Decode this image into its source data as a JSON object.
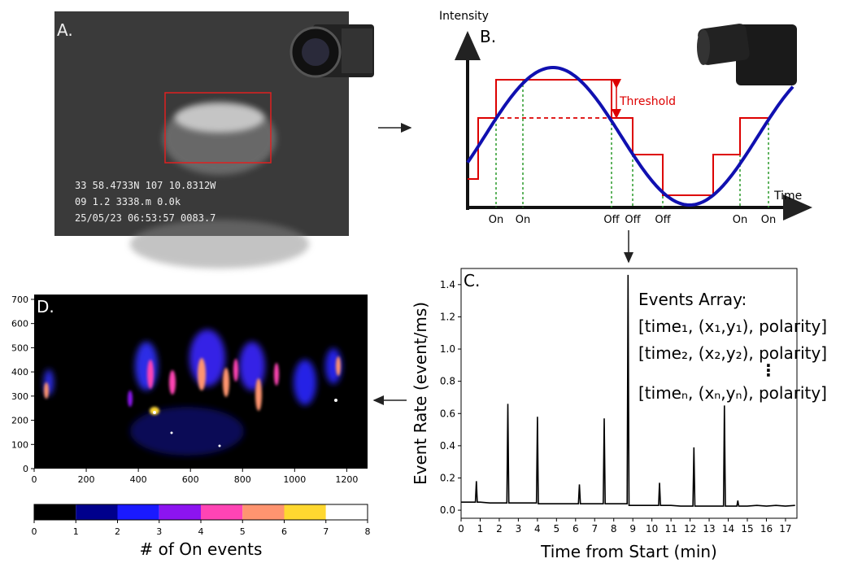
{
  "panels": {
    "A": {
      "label": "A.",
      "overlay": [
        "33 58.4733N 107 10.8312W",
        "09 1.2 3338.m   0.0k",
        "25/05/23 06:53:57 0083.7"
      ]
    },
    "B": {
      "label": "B.",
      "y_label": "Intensity",
      "x_label": "Time",
      "threshold": "Threshold",
      "events": [
        "On",
        "On",
        "Off",
        "Off",
        "Off",
        "On",
        "On"
      ]
    }
  },
  "chart_data": [
    {
      "type": "line",
      "panel_label": "C.",
      "xlabel": "Time from Start (min)",
      "ylabel": "Event Rate (event/ms)",
      "color": "#000000",
      "x": [
        0,
        0.5,
        0.75,
        0.8,
        0.85,
        1,
        1.5,
        2,
        2.4,
        2.45,
        2.5,
        3,
        3.5,
        3.95,
        4.0,
        4.05,
        4.5,
        5,
        5.5,
        6,
        6.15,
        6.2,
        6.25,
        6.5,
        7,
        7.45,
        7.5,
        7.55,
        8,
        8.5,
        8.7,
        8.75,
        8.8,
        9,
        9.5,
        10,
        10.35,
        10.4,
        10.45,
        11,
        11.5,
        12,
        12.15,
        12.2,
        12.25,
        12.5,
        13,
        13.5,
        13.75,
        13.8,
        13.85,
        14,
        14.45,
        14.5,
        14.55,
        15,
        15.5,
        16,
        16.5,
        17,
        17.5
      ],
      "values": [
        0.05,
        0.05,
        0.05,
        0.18,
        0.05,
        0.05,
        0.045,
        0.045,
        0.045,
        0.66,
        0.045,
        0.045,
        0.045,
        0.045,
        0.58,
        0.04,
        0.04,
        0.04,
        0.04,
        0.04,
        0.04,
        0.16,
        0.04,
        0.04,
        0.04,
        0.04,
        0.57,
        0.04,
        0.04,
        0.04,
        0.04,
        1.46,
        0.03,
        0.03,
        0.03,
        0.03,
        0.03,
        0.17,
        0.03,
        0.03,
        0.025,
        0.025,
        0.025,
        0.39,
        0.025,
        0.025,
        0.025,
        0.025,
        0.025,
        0.65,
        0.025,
        0.025,
        0.025,
        0.06,
        0.025,
        0.025,
        0.03,
        0.025,
        0.03,
        0.025,
        0.03
      ],
      "xlim": [
        0,
        17.6
      ],
      "ylim": [
        -0.05,
        1.5
      ],
      "xticks": [
        0,
        1,
        2,
        3,
        4,
        5,
        6,
        7,
        8,
        9,
        10,
        11,
        12,
        13,
        14,
        15,
        16,
        17
      ],
      "yticks": [
        {
          "value": 0,
          "label": "0.0"
        },
        0.2,
        0.4,
        0.6,
        0.8,
        {
          "value": 1,
          "label": "1.0"
        },
        1.2,
        1.4
      ],
      "annotation": [
        "Events Array:",
        "[time₁, (x₁,y₁), polarity]",
        "[time₂, (x₂,y₂), polarity]",
        "[timeₙ, (xₙ,yₙ), polarity]"
      ]
    },
    {
      "type": "heatmap",
      "panel_label": "D.",
      "xlim": [
        0,
        1280
      ],
      "ylim": [
        0,
        720
      ],
      "xticks": [
        0,
        200,
        400,
        600,
        800,
        1000,
        1200
      ],
      "yticks": [
        0,
        100,
        200,
        300,
        400,
        500,
        600,
        700
      ],
      "colorbar": {
        "label": "# of On events",
        "ticks": [
          0,
          1,
          2,
          3,
          4,
          5,
          6,
          7,
          8
        ],
        "colors": [
          "#000000",
          "#00008c",
          "#1a1aff",
          "#8c14f0",
          "#ff44b4",
          "#ff9470",
          "#ffd830",
          "#ffffff"
        ]
      }
    }
  ]
}
